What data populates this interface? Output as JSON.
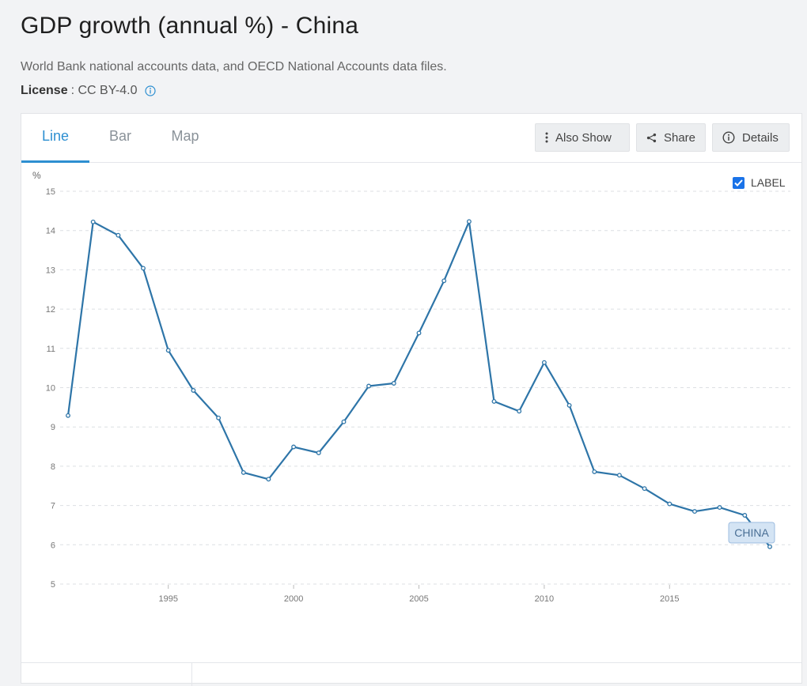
{
  "header": {
    "title": "GDP growth (annual %) - China",
    "source": "World Bank national accounts data, and OECD National Accounts data files.",
    "license_label": "License",
    "license_value": ": CC BY-4.0"
  },
  "tabs": [
    {
      "label": "Line"
    },
    {
      "label": "Bar"
    },
    {
      "label": "Map"
    }
  ],
  "toolbar": {
    "also_show": "Also Show",
    "share": "Share",
    "details": "Details"
  },
  "label_toggle": {
    "label": "LABEL",
    "checked": true
  },
  "colors": {
    "accent": "#2d8fd1",
    "line": "#2e75a8",
    "checkbox": "#1a73e8"
  },
  "chart_data": {
    "type": "line",
    "ylabel": "%",
    "ylim": [
      5,
      15
    ],
    "yticks": [
      5,
      6,
      7,
      8,
      9,
      10,
      11,
      12,
      13,
      14,
      15
    ],
    "xlim": [
      1991,
      2019
    ],
    "xticks": [
      1995,
      2000,
      2005,
      2010,
      2015
    ],
    "grid": true,
    "series": [
      {
        "name": "CHINA",
        "x": [
          1991,
          1992,
          1993,
          1994,
          1995,
          1996,
          1997,
          1998,
          1999,
          2000,
          2001,
          2002,
          2003,
          2004,
          2005,
          2006,
          2007,
          2008,
          2009,
          2010,
          2011,
          2012,
          2013,
          2014,
          2015,
          2016,
          2017,
          2018,
          2019
        ],
        "values": [
          9.29,
          14.22,
          13.88,
          13.04,
          10.95,
          9.93,
          9.23,
          7.84,
          7.67,
          8.49,
          8.34,
          9.13,
          10.04,
          10.11,
          11.39,
          12.72,
          14.23,
          9.65,
          9.4,
          10.64,
          9.55,
          7.86,
          7.77,
          7.43,
          7.04,
          6.85,
          6.95,
          6.75,
          5.95
        ]
      }
    ]
  }
}
